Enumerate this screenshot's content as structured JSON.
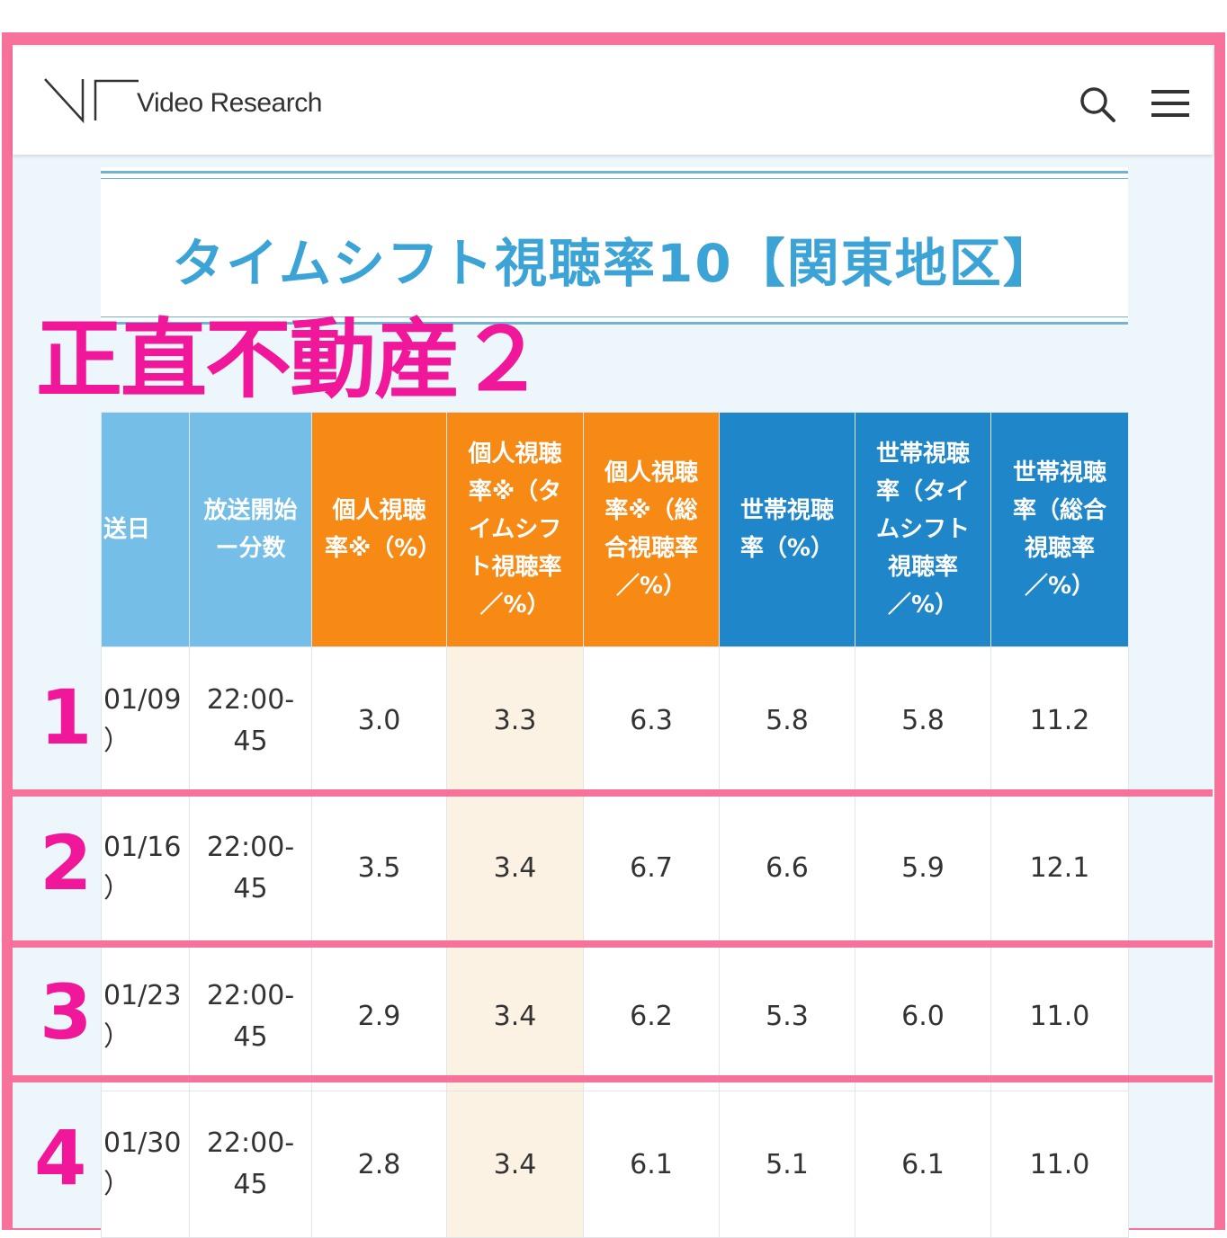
{
  "header": {
    "logo_text": "Video Research",
    "search_icon": "search-icon",
    "menu_icon": "hamburger-menu-icon"
  },
  "title": "タイムシフト視聴率10【関東地区】",
  "overlay_title": "正直不動産２",
  "colors": {
    "frame_pink": "#f7729a",
    "overlay_magenta": "#f0179a",
    "title_blue": "#3ba3d6",
    "header_light_blue": "#74bee8",
    "header_orange": "#f68a14",
    "header_blue": "#1f86c9",
    "highlight_cell": "#fcf2e4"
  },
  "table": {
    "headers": [
      "送日",
      "放送開始ー分数",
      "個人視聴率※（%）",
      "個人視聴率※（タイムシフト視聴率／%）",
      "個人視聴率※（総合視聴率／%）",
      "世帯視聴率（%）",
      "世帯視聴率（タイムシフト視聴率／%）",
      "世帯視聴率（総合視聴率／%）"
    ],
    "rows": [
      {
        "num": "1",
        "date": "01/09",
        "day": "）",
        "time1": "22:00-",
        "time2": "45",
        "p": "3.0",
        "pts": "3.3",
        "ptotal": "6.3",
        "h": "5.8",
        "hts": "5.8",
        "htotal": "11.2"
      },
      {
        "num": "2",
        "date": "01/16",
        "day": "）",
        "time1": "22:00-",
        "time2": "45",
        "p": "3.5",
        "pts": "3.4",
        "ptotal": "6.7",
        "h": "6.6",
        "hts": "5.9",
        "htotal": "12.1"
      },
      {
        "num": "3",
        "date": "01/23",
        "day": "）",
        "time1": "22:00-",
        "time2": "45",
        "p": "2.9",
        "pts": "3.4",
        "ptotal": "6.2",
        "h": "5.3",
        "hts": "6.0",
        "htotal": "11.0"
      },
      {
        "num": "4",
        "date": "01/30",
        "day": "）",
        "time1": "22:00-",
        "time2": "45",
        "p": "2.8",
        "pts": "3.4",
        "ptotal": "6.1",
        "h": "5.1",
        "hts": "6.1",
        "htotal": "11.0"
      }
    ]
  }
}
